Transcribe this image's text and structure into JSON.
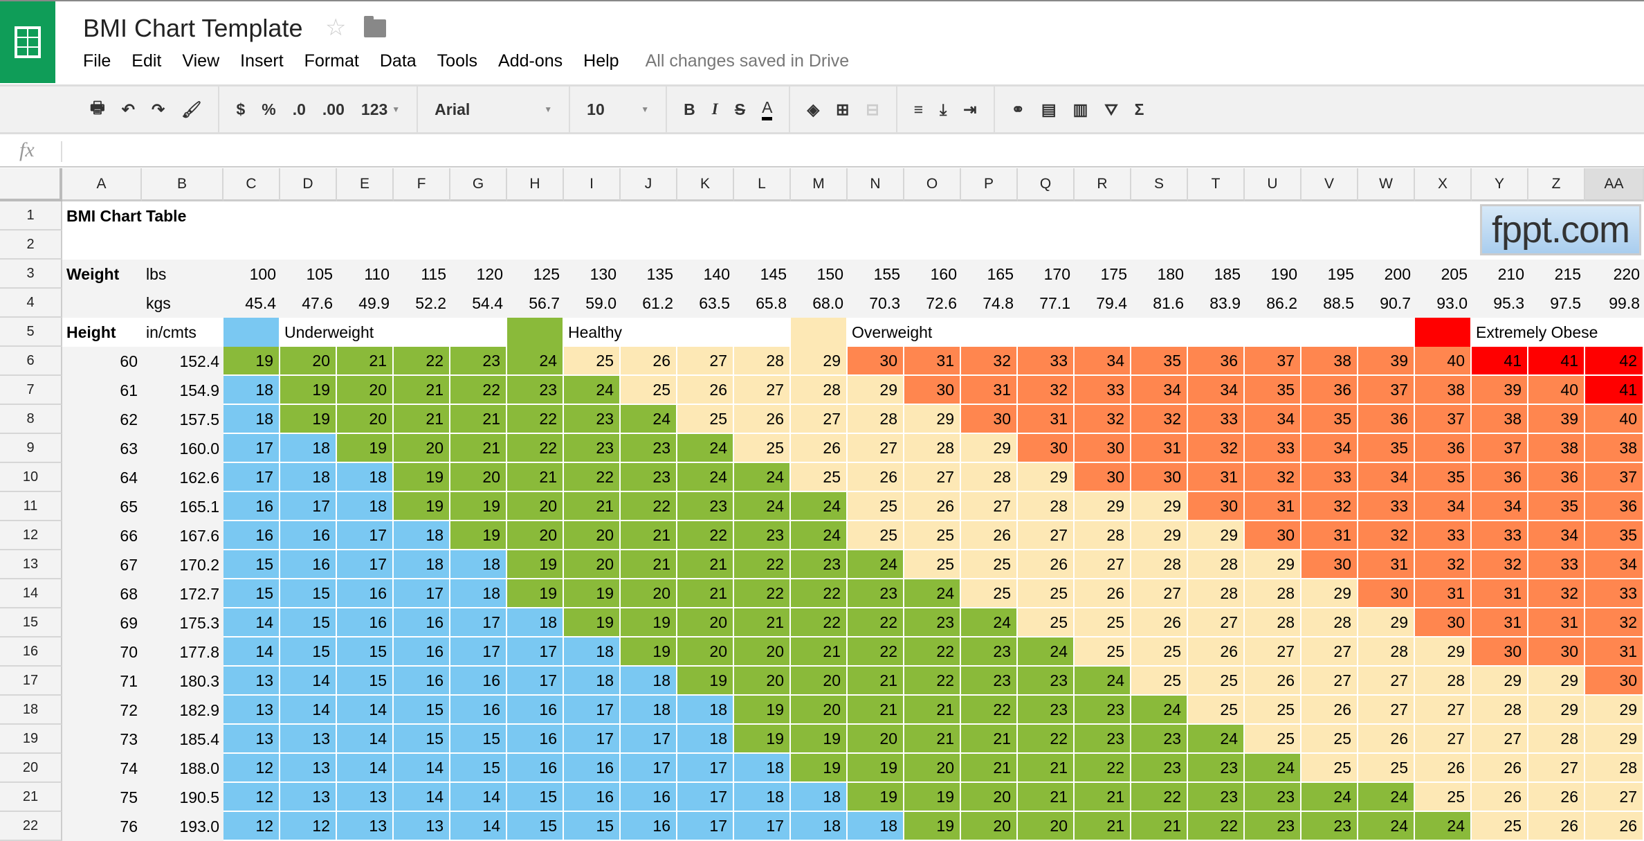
{
  "app": {
    "title": "BMI Chart Template",
    "menu": [
      "File",
      "Edit",
      "View",
      "Insert",
      "Format",
      "Data",
      "Tools",
      "Add-ons",
      "Help"
    ],
    "save_status": "All changes saved in Drive"
  },
  "toolbar": {
    "currency": "$",
    "percent": "%",
    "decrease_decimals": ".0",
    "increase_decimals": ".00",
    "more_formats": "123",
    "font": "Arial",
    "font_size": "10",
    "bold": "B",
    "italic": "I",
    "strikethrough": "S",
    "text_color": "A",
    "sum": "Σ"
  },
  "formula_bar": {
    "fx": "fx",
    "value": ""
  },
  "columns": [
    "A",
    "B",
    "C",
    "D",
    "E",
    "F",
    "G",
    "H",
    "I",
    "J",
    "K",
    "L",
    "M",
    "N",
    "O",
    "P",
    "Q",
    "R",
    "S",
    "T",
    "U",
    "V",
    "W",
    "X",
    "Y",
    "Z",
    "AA"
  ],
  "selected_column": "AA",
  "row_numbers": [
    1,
    2,
    3,
    4,
    5,
    6,
    7,
    8,
    9,
    10,
    11,
    12,
    13,
    14,
    15,
    16,
    17,
    18,
    19,
    20,
    21,
    22
  ],
  "sheet": {
    "title": "BMI Chart Table",
    "logo_text": "fppt.com",
    "weight_label": "Weight",
    "lbs_label": "lbs",
    "kgs_label": "kgs",
    "height_label": "Height",
    "height_unit_label": "in/cmts",
    "lbs": [
      "100",
      "105",
      "110",
      "115",
      "120",
      "125",
      "130",
      "135",
      "140",
      "145",
      "150",
      "155",
      "160",
      "165",
      "170",
      "175",
      "180",
      "185",
      "190",
      "195",
      "200",
      "205",
      "210",
      "215",
      "220"
    ],
    "kgs": [
      "45.4",
      "47.6",
      "49.9",
      "52.2",
      "54.4",
      "56.7",
      "59.0",
      "61.2",
      "63.5",
      "65.8",
      "68.0",
      "70.3",
      "72.6",
      "74.8",
      "77.1",
      "79.4",
      "81.6",
      "83.9",
      "86.2",
      "88.5",
      "90.7",
      "93.0",
      "95.3",
      "97.5",
      "99.8"
    ],
    "legend": [
      {
        "label": "Underweight",
        "color": "#7ac8f2",
        "max": 18
      },
      {
        "label": "Healthy",
        "color": "#8aba3a",
        "min": 19,
        "max": 24
      },
      {
        "label": "Overweight",
        "color": "#fde8b5",
        "min": 25,
        "max": 29
      },
      {
        "color": "#ff864f",
        "min": 30,
        "max": 40
      },
      {
        "label": "Extremely Obese",
        "color": "#ff0000",
        "min": 41
      }
    ],
    "rows": [
      {
        "in": "60",
        "cm": "152.4",
        "bmi": [
          19,
          20,
          21,
          22,
          23,
          24,
          25,
          26,
          27,
          28,
          29,
          30,
          31,
          32,
          33,
          34,
          35,
          36,
          37,
          38,
          39,
          40,
          41,
          41,
          42
        ]
      },
      {
        "in": "61",
        "cm": "154.9",
        "bmi": [
          18,
          19,
          20,
          21,
          22,
          23,
          24,
          25,
          26,
          27,
          28,
          29,
          30,
          31,
          32,
          33,
          34,
          34,
          35,
          36,
          37,
          38,
          39,
          40,
          41
        ]
      },
      {
        "in": "62",
        "cm": "157.5",
        "bmi": [
          18,
          19,
          20,
          21,
          21,
          22,
          23,
          24,
          25,
          26,
          27,
          28,
          29,
          30,
          31,
          32,
          32,
          33,
          34,
          35,
          36,
          37,
          38,
          39,
          40
        ]
      },
      {
        "in": "63",
        "cm": "160.0",
        "bmi": [
          17,
          18,
          19,
          20,
          21,
          22,
          23,
          23,
          24,
          25,
          26,
          27,
          28,
          29,
          30,
          30,
          31,
          32,
          33,
          34,
          35,
          36,
          37,
          38,
          38
        ]
      },
      {
        "in": "64",
        "cm": "162.6",
        "bmi": [
          17,
          18,
          18,
          19,
          20,
          21,
          22,
          23,
          24,
          24,
          25,
          26,
          27,
          28,
          29,
          30,
          30,
          31,
          32,
          33,
          34,
          35,
          36,
          36,
          37
        ]
      },
      {
        "in": "65",
        "cm": "165.1",
        "bmi": [
          16,
          17,
          18,
          19,
          19,
          20,
          21,
          22,
          23,
          24,
          24,
          25,
          26,
          27,
          28,
          29,
          29,
          30,
          31,
          32,
          33,
          34,
          34,
          35,
          36
        ]
      },
      {
        "in": "66",
        "cm": "167.6",
        "bmi": [
          16,
          16,
          17,
          18,
          19,
          20,
          20,
          21,
          22,
          23,
          24,
          25,
          25,
          26,
          27,
          28,
          29,
          29,
          30,
          31,
          32,
          33,
          33,
          34,
          35
        ]
      },
      {
        "in": "67",
        "cm": "170.2",
        "bmi": [
          15,
          16,
          17,
          18,
          18,
          19,
          20,
          21,
          21,
          22,
          23,
          24,
          25,
          25,
          26,
          27,
          28,
          28,
          29,
          30,
          31,
          32,
          32,
          33,
          34
        ]
      },
      {
        "in": "68",
        "cm": "172.7",
        "bmi": [
          15,
          15,
          16,
          17,
          18,
          19,
          19,
          20,
          21,
          22,
          22,
          23,
          24,
          25,
          25,
          26,
          27,
          28,
          28,
          29,
          30,
          31,
          31,
          32,
          33
        ]
      },
      {
        "in": "69",
        "cm": "175.3",
        "bmi": [
          14,
          15,
          16,
          16,
          17,
          18,
          19,
          19,
          20,
          21,
          22,
          22,
          23,
          24,
          25,
          25,
          26,
          27,
          28,
          28,
          29,
          30,
          31,
          31,
          32
        ]
      },
      {
        "in": "70",
        "cm": "177.8",
        "bmi": [
          14,
          15,
          15,
          16,
          17,
          17,
          18,
          19,
          20,
          20,
          21,
          22,
          22,
          23,
          24,
          25,
          25,
          26,
          27,
          27,
          28,
          29,
          30,
          30,
          31
        ]
      },
      {
        "in": "71",
        "cm": "180.3",
        "bmi": [
          13,
          14,
          15,
          16,
          16,
          17,
          18,
          18,
          19,
          20,
          20,
          21,
          22,
          23,
          23,
          24,
          25,
          25,
          26,
          27,
          27,
          28,
          29,
          29,
          30
        ]
      },
      {
        "in": "72",
        "cm": "182.9",
        "bmi": [
          13,
          14,
          14,
          15,
          16,
          16,
          17,
          18,
          18,
          19,
          20,
          21,
          21,
          22,
          23,
          23,
          24,
          25,
          25,
          26,
          27,
          27,
          28,
          29,
          29
        ]
      },
      {
        "in": "73",
        "cm": "185.4",
        "bmi": [
          13,
          13,
          14,
          15,
          15,
          16,
          17,
          17,
          18,
          19,
          19,
          20,
          21,
          21,
          22,
          23,
          23,
          24,
          25,
          25,
          26,
          27,
          27,
          28,
          29
        ]
      },
      {
        "in": "74",
        "cm": "188.0",
        "bmi": [
          12,
          13,
          14,
          14,
          15,
          16,
          16,
          17,
          17,
          18,
          19,
          19,
          20,
          21,
          21,
          22,
          23,
          23,
          24,
          25,
          25,
          26,
          26,
          27,
          28
        ]
      },
      {
        "in": "75",
        "cm": "190.5",
        "bmi": [
          12,
          13,
          13,
          14,
          14,
          15,
          16,
          16,
          17,
          18,
          18,
          19,
          19,
          20,
          21,
          21,
          22,
          23,
          23,
          24,
          24,
          25,
          26,
          26,
          27
        ]
      },
      {
        "in": "76",
        "cm": "193.0",
        "bmi": [
          12,
          12,
          13,
          13,
          14,
          15,
          15,
          16,
          17,
          17,
          18,
          18,
          19,
          20,
          20,
          21,
          21,
          22,
          23,
          23,
          24,
          24,
          25,
          26,
          26
        ]
      }
    ]
  }
}
